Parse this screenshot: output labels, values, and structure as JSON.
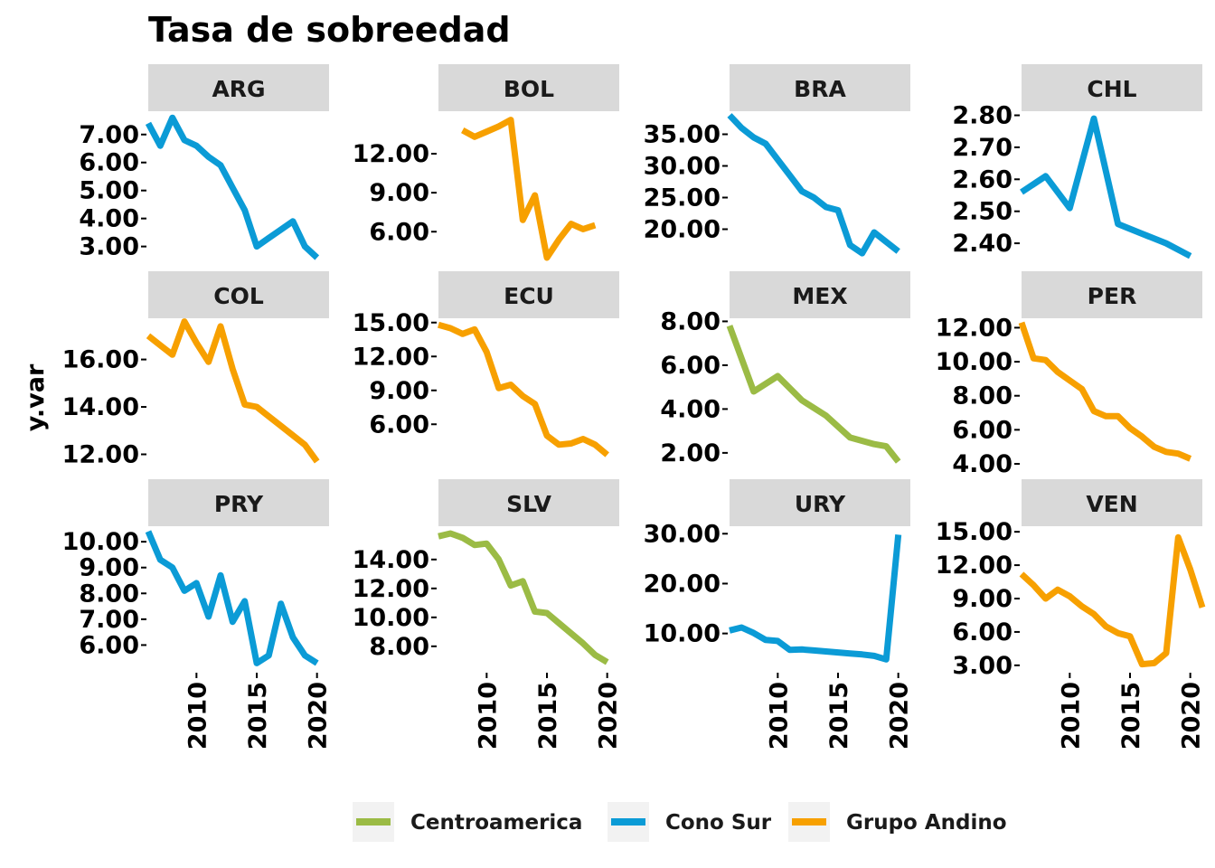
{
  "chart_data": {
    "type": "line",
    "layout": "facet-grid",
    "title": "Tasa de sobreedad",
    "ylabel": "y.var",
    "xlabel": "",
    "x_ticks": [
      2010,
      2015,
      2020
    ],
    "xlim": [
      2006,
      2021
    ],
    "grid": false,
    "legend_position": "bottom",
    "legend": [
      {
        "name": "Centroamerica",
        "color": "#9bbb45"
      },
      {
        "name": "Cono Sur",
        "color": "#0b9bd6"
      },
      {
        "name": "Grupo Andino",
        "color": "#f7a000"
      }
    ],
    "panels": [
      {
        "label": "ARG",
        "group": "Cono Sur",
        "ylim": [
          2.6,
          7.8
        ],
        "yticks": [
          "7.00",
          "6.00",
          "5.00",
          "4.00",
          "3.00"
        ],
        "ytick_values": [
          7,
          6,
          5,
          4,
          3
        ],
        "x": [
          2006,
          2007,
          2008,
          2009,
          2010,
          2011,
          2012,
          2013,
          2014,
          2015,
          2016,
          2017,
          2018,
          2019,
          2020
        ],
        "y": [
          7.4,
          6.6,
          7.6,
          6.8,
          6.6,
          6.2,
          5.9,
          5.1,
          4.3,
          3.0,
          3.3,
          3.6,
          3.9,
          3.0,
          2.6
        ]
      },
      {
        "label": "BOL",
        "group": "Grupo Andino",
        "ylim": [
          4.0,
          15.2
        ],
        "yticks": [
          "12.00",
          "9.00",
          "6.00"
        ],
        "ytick_values": [
          12,
          9,
          6
        ],
        "x": [
          2008,
          2009,
          2010,
          2011,
          2012,
          2013,
          2014,
          2015,
          2016,
          2017,
          2018,
          2019
        ],
        "y": [
          13.8,
          13.3,
          13.7,
          14.1,
          14.6,
          6.9,
          8.8,
          4.0,
          5.4,
          6.6,
          6.2,
          6.5
        ]
      },
      {
        "label": "BRA",
        "group": "Cono Sur",
        "ylim": [
          15.5,
          38.5
        ],
        "yticks": [
          "35.00",
          "30.00",
          "25.00",
          "20.00"
        ],
        "ytick_values": [
          35,
          30,
          25,
          20
        ],
        "x": [
          2006,
          2007,
          2008,
          2009,
          2010,
          2011,
          2012,
          2013,
          2014,
          2015,
          2016,
          2017,
          2018,
          2019,
          2020
        ],
        "y": [
          38.0,
          36.0,
          34.5,
          33.5,
          31.0,
          28.5,
          26.0,
          25.0,
          23.5,
          23.0,
          17.5,
          16.2,
          19.5,
          18.0,
          16.5
        ]
      },
      {
        "label": "CHL",
        "group": "Cono Sur",
        "ylim": [
          2.355,
          2.81
        ],
        "yticks": [
          "2.80",
          "2.70",
          "2.60",
          "2.50",
          "2.40"
        ],
        "ytick_values": [
          2.8,
          2.7,
          2.6,
          2.5,
          2.4
        ],
        "x": [
          2006,
          2008,
          2010,
          2012,
          2014,
          2016,
          2018,
          2020
        ],
        "y": [
          2.56,
          2.61,
          2.51,
          2.79,
          2.46,
          2.43,
          2.4,
          2.36
        ]
      },
      {
        "label": "COL",
        "group": "Grupo Andino",
        "ylim": [
          11.6,
          17.7
        ],
        "yticks": [
          "16.00",
          "14.00",
          "12.00"
        ],
        "ytick_values": [
          16,
          14,
          12
        ],
        "x": [
          2006,
          2007,
          2008,
          2009,
          2010,
          2011,
          2012,
          2013,
          2014,
          2015,
          2016,
          2017,
          2018,
          2019,
          2020
        ],
        "y": [
          17.0,
          16.6,
          16.2,
          17.6,
          16.7,
          15.9,
          17.4,
          15.6,
          14.1,
          14.0,
          13.6,
          13.2,
          12.8,
          12.4,
          11.7
        ]
      },
      {
        "label": "ECU",
        "group": "Grupo Andino",
        "ylim": [
          2.5,
          15.3
        ],
        "yticks": [
          "15.00",
          "12.00",
          "9.00",
          "6.00"
        ],
        "ytick_values": [
          15,
          12,
          9,
          6
        ],
        "x": [
          2006,
          2007,
          2008,
          2009,
          2010,
          2011,
          2012,
          2013,
          2014,
          2015,
          2016,
          2017,
          2018,
          2019,
          2020
        ],
        "y": [
          14.8,
          14.5,
          14.0,
          14.4,
          12.4,
          9.2,
          9.5,
          8.5,
          7.8,
          5.0,
          4.2,
          4.3,
          4.7,
          4.2,
          3.3
        ]
      },
      {
        "label": "MEX",
        "group": "Centroamerica",
        "ylim": [
          1.5,
          8.1
        ],
        "yticks": [
          "8.00",
          "6.00",
          "4.00",
          "2.00"
        ],
        "ytick_values": [
          8,
          6,
          4,
          2
        ],
        "x": [
          2006,
          2008,
          2010,
          2012,
          2014,
          2016,
          2018,
          2019,
          2020
        ],
        "y": [
          7.8,
          4.8,
          5.5,
          4.4,
          3.7,
          2.7,
          2.4,
          2.3,
          1.6
        ]
      },
      {
        "label": "PER",
        "group": "Grupo Andino",
        "ylim": [
          4.0,
          12.5
        ],
        "yticks": [
          "12.00",
          "10.00",
          "8.00",
          "6.00",
          "4.00"
        ],
        "ytick_values": [
          12,
          10,
          8,
          6,
          4
        ],
        "x": [
          2006,
          2007,
          2008,
          2009,
          2010,
          2011,
          2012,
          2013,
          2014,
          2015,
          2016,
          2017,
          2018,
          2019,
          2020
        ],
        "y": [
          12.3,
          10.2,
          10.1,
          9.4,
          8.9,
          8.4,
          7.1,
          6.8,
          6.8,
          6.1,
          5.6,
          5.0,
          4.7,
          4.6,
          4.3
        ]
      },
      {
        "label": "PRY",
        "group": "Cono Sur",
        "ylim": [
          5.0,
          10.6
        ],
        "yticks": [
          "10.00",
          "9.00",
          "8.00",
          "7.00",
          "6.00"
        ],
        "ytick_values": [
          10,
          9,
          8,
          7,
          6
        ],
        "x": [
          2006,
          2007,
          2008,
          2009,
          2010,
          2011,
          2012,
          2013,
          2014,
          2015,
          2016,
          2017,
          2018,
          2019,
          2020
        ],
        "y": [
          10.4,
          9.3,
          9.0,
          8.1,
          8.4,
          7.1,
          8.7,
          6.9,
          7.7,
          5.3,
          5.6,
          7.6,
          6.3,
          5.6,
          5.3
        ]
      },
      {
        "label": "SLV",
        "group": "Centroamerica",
        "ylim": [
          6.3,
          16.3
        ],
        "yticks": [
          "14.00",
          "12.00",
          "10.00",
          "8.00"
        ],
        "ytick_values": [
          14,
          12,
          10,
          8
        ],
        "x": [
          2006,
          2007,
          2008,
          2009,
          2010,
          2011,
          2012,
          2013,
          2014,
          2015,
          2016,
          2017,
          2018,
          2019,
          2020
        ],
        "y": [
          15.6,
          15.8,
          15.5,
          15.0,
          15.1,
          14.0,
          12.2,
          12.5,
          10.4,
          10.3,
          9.6,
          8.9,
          8.2,
          7.4,
          6.9
        ]
      },
      {
        "label": "URY",
        "group": "Cono Sur",
        "ylim": [
          2.5,
          31.5
        ],
        "yticks": [
          "30.00",
          "20.00",
          "10.00"
        ],
        "ytick_values": [
          30,
          20,
          10
        ],
        "x": [
          2006,
          2007,
          2008,
          2009,
          2010,
          2011,
          2012,
          2013,
          2014,
          2015,
          2016,
          2017,
          2018,
          2019,
          2020
        ],
        "y": [
          10.6,
          11.2,
          10.1,
          8.7,
          8.5,
          6.7,
          6.8,
          6.6,
          6.4,
          6.2,
          6.0,
          5.8,
          5.5,
          4.8,
          29.8
        ]
      },
      {
        "label": "VEN",
        "group": "Grupo Andino",
        "ylim": [
          2.5,
          15.5
        ],
        "yticks": [
          "15.00",
          "12.00",
          "9.00",
          "6.00",
          "3.00"
        ],
        "ytick_values": [
          15,
          12,
          9,
          6,
          3
        ],
        "x": [
          2006,
          2007,
          2008,
          2009,
          2010,
          2011,
          2012,
          2013,
          2014,
          2015,
          2016,
          2017,
          2018,
          2019,
          2020,
          2021
        ],
        "y": [
          11.2,
          10.2,
          9.0,
          9.8,
          9.2,
          8.3,
          7.6,
          6.5,
          5.9,
          5.6,
          3.1,
          3.2,
          4.1,
          14.5,
          11.6,
          8.2
        ]
      }
    ]
  }
}
